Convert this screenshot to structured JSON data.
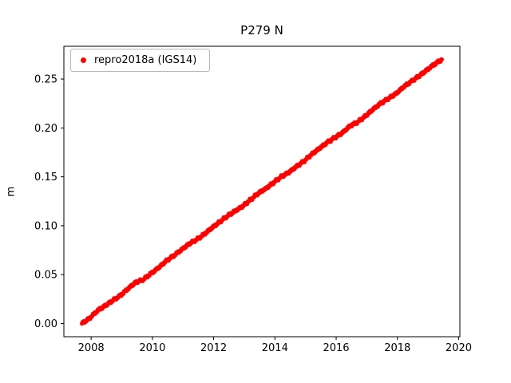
{
  "chart_data": {
    "type": "scatter",
    "title": "P279 N",
    "xlabel": "",
    "ylabel": "m",
    "grid": false,
    "legend_position": "upper left",
    "xlim": [
      2007.11,
      2020.04
    ],
    "ylim": [
      -0.0135,
      0.2835
    ],
    "xticks": [
      2008,
      2010,
      2012,
      2014,
      2016,
      2018,
      2020
    ],
    "xtick_labels": [
      "2008",
      "2010",
      "2012",
      "2014",
      "2016",
      "2018",
      "2020"
    ],
    "yticks": [
      0.0,
      0.05,
      0.1,
      0.15,
      0.2,
      0.25
    ],
    "ytick_labels": [
      "0.00",
      "0.05",
      "0.10",
      "0.15",
      "0.20",
      "0.25"
    ],
    "series": [
      {
        "name": "repro2018a (IGS14)",
        "color": "#ff0000",
        "marker": "dot",
        "x_start": 2007.7,
        "x_step": 0.25,
        "y": [
          0.0,
          0.0055,
          0.013,
          0.018,
          0.0235,
          0.0285,
          0.0355,
          0.042,
          0.045,
          0.051,
          0.057,
          0.064,
          0.0695,
          0.0755,
          0.0815,
          0.086,
          0.0915,
          0.098,
          0.104,
          0.11,
          0.115,
          0.12,
          0.1265,
          0.133,
          0.138,
          0.144,
          0.15,
          0.1545,
          0.1605,
          0.166,
          0.173,
          0.179,
          0.185,
          0.19,
          0.195,
          0.202,
          0.206,
          0.212,
          0.219,
          0.225,
          0.23,
          0.235,
          0.242,
          0.2475,
          0.253,
          0.259,
          0.265,
          0.27
        ]
      }
    ]
  }
}
